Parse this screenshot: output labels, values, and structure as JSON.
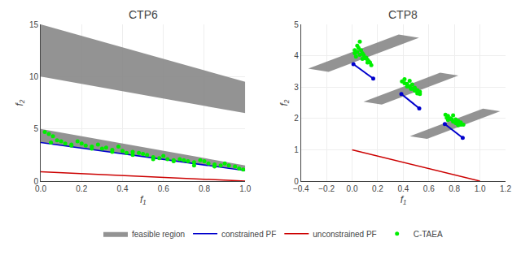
{
  "chart_data": [
    {
      "type": "scatter",
      "title": "CTP6",
      "xlabel": "f₁",
      "ylabel": "f₂",
      "xlim": [
        0,
        1
      ],
      "ylim": [
        0,
        15
      ],
      "xticks": [
        {
          "value": 0,
          "label": "0.0"
        },
        0.2,
        0.4,
        0.6,
        0.8,
        {
          "value": 1.0,
          "label": "1.0"
        }
      ],
      "yticks": [
        0,
        5,
        10,
        15
      ],
      "grid": true,
      "series": [
        {
          "name": "feasible region",
          "type": "area",
          "color": "#808080",
          "polygons": [
            {
              "x": [
                0,
                1,
                1,
                0
              ],
              "y": [
                3.7,
                1.0,
                1.5,
                5.0
              ]
            },
            {
              "x": [
                0,
                1,
                1,
                0
              ],
              "y": [
                10.0,
                6.5,
                9.5,
                15.0
              ]
            }
          ]
        },
        {
          "name": "constrained PF",
          "type": "line",
          "color": "#0000cc",
          "x": [
            0.0,
            1.0
          ],
          "values": [
            3.7,
            1.0
          ]
        },
        {
          "name": "unconstrained PF",
          "type": "line",
          "color": "#cc0000",
          "x": [
            0.0,
            1.0
          ],
          "values": [
            0.9,
            0.0
          ]
        },
        {
          "name": "C-TAEA",
          "type": "scatter",
          "color": "#00ee00",
          "marker": "dot",
          "x": [
            0.02,
            0.04,
            0.06,
            0.08,
            0.1,
            0.12,
            0.05,
            0.15,
            0.18,
            0.2,
            0.22,
            0.25,
            0.28,
            0.3,
            0.32,
            0.35,
            0.38,
            0.4,
            0.42,
            0.45,
            0.48,
            0.5,
            0.52,
            0.55,
            0.58,
            0.6,
            0.62,
            0.65,
            0.68,
            0.7,
            0.72,
            0.75,
            0.78,
            0.8,
            0.82,
            0.85,
            0.88,
            0.9,
            0.92,
            0.95,
            0.97,
            0.99,
            0.15,
            0.35,
            0.55,
            0.75,
            0.25,
            0.45,
            0.65,
            0.85
          ],
          "values": [
            4.7,
            4.5,
            4.3,
            3.9,
            3.8,
            3.6,
            3.7,
            3.5,
            3.8,
            3.6,
            3.4,
            3.3,
            3.5,
            3.1,
            3.2,
            3.0,
            3.3,
            2.9,
            2.7,
            2.8,
            2.7,
            2.6,
            2.5,
            2.3,
            2.2,
            2.4,
            2.1,
            2.0,
            2.1,
            2.0,
            1.9,
            1.8,
            2.0,
            1.9,
            1.7,
            1.6,
            1.5,
            1.7,
            1.5,
            1.4,
            1.2,
            1.1,
            3.4,
            2.8,
            2.1,
            1.5,
            3.1,
            2.5,
            1.9,
            1.4
          ]
        }
      ]
    },
    {
      "type": "scatter",
      "title": "CTP8",
      "xlabel": "f₁",
      "ylabel": "f₂",
      "xlim": [
        -0.4,
        1.2
      ],
      "ylim": [
        0,
        5
      ],
      "xticks": [
        {
          "value": -0.4,
          "label": "−0.4"
        },
        {
          "value": -0.2,
          "label": "−0.2"
        },
        {
          "value": 0,
          "label": "0.0"
        },
        0.2,
        0.4,
        0.6,
        0.8,
        {
          "value": 1.0,
          "label": "1.0"
        },
        1.2
      ],
      "yticks": [
        0,
        1,
        2,
        3,
        4,
        5
      ],
      "grid": true,
      "series": [
        {
          "name": "feasible region",
          "type": "area",
          "color": "#808080",
          "polygons": [
            {
              "x": [
                -0.3436890768,
                -0.1843416688,
                0.5236890768,
                0.3643416688
              ],
              "y": [
                3.5866048392,
                3.4831234226,
                4.5733951608,
                4.6768765774
              ]
            },
            {
              "x": [
                0.0891615324,
                0.231735529,
                0.8308384676,
                0.688264471
              ],
              "y": [
                2.5350255057,
                2.4424368697,
                3.3649744943,
                3.4575631303
              ]
            },
            {
              "x": [
                0.4519708612,
                0.586158152,
                1.1580291388,
                1.023841848
              ],
              "y": [
                1.4332690747,
                1.3461268291,
                2.2267309253,
                2.3138731709
              ]
            }
          ]
        },
        {
          "name": "constrained PF",
          "type": "line",
          "color": "#0000cc",
          "marker": "dot",
          "x": [
            0.01,
            0.165,
            null,
            0.385,
            0.525,
            null,
            0.725,
            0.865
          ],
          "values": [
            3.73,
            3.27,
            null,
            2.78,
            2.32,
            null,
            1.82,
            1.38
          ]
        },
        {
          "name": "unconstrained PF",
          "type": "line",
          "color": "#cc0000",
          "x": [
            0.0,
            1.0
          ],
          "values": [
            1.0,
            0.0
          ]
        },
        {
          "name": "C-TAEA",
          "type": "scatter",
          "color": "#00ee00",
          "marker": "dot",
          "x": [
            0.02,
            0.04,
            0.06,
            0.08,
            0.1,
            0.12,
            0.03,
            0.07,
            0.09,
            0.11,
            0.05,
            0.13,
            0.14,
            0.15,
            0.02,
            0.06,
            0.08,
            0.12,
            0.04,
            0.39,
            0.41,
            0.43,
            0.45,
            0.47,
            0.49,
            0.51,
            0.53,
            0.41,
            0.45,
            0.47,
            0.51,
            0.43,
            0.49,
            0.53,
            0.46,
            0.73,
            0.75,
            0.77,
            0.79,
            0.81,
            0.83,
            0.85,
            0.87,
            0.75,
            0.79,
            0.81,
            0.83,
            0.77,
            0.81,
            0.85,
            0.74,
            0.78,
            0.82
          ],
          "values": [
            4.18,
            4.32,
            4.45,
            4.08,
            3.92,
            3.87,
            3.97,
            4.18,
            4.02,
            3.94,
            4.25,
            3.82,
            3.78,
            3.7,
            4.08,
            4.03,
            3.9,
            3.78,
            4.12,
            3.18,
            3.25,
            3.1,
            3.2,
            3.08,
            2.98,
            2.9,
            2.85,
            3.12,
            3.02,
            2.95,
            2.8,
            3.02,
            2.88,
            2.78,
            2.95,
            2.12,
            2.08,
            2.0,
            2.1,
            1.97,
            1.92,
            1.87,
            1.8,
            1.95,
            1.9,
            1.85,
            1.78,
            1.98,
            1.9,
            1.8,
            2.02,
            1.97,
            1.84
          ]
        }
      ]
    }
  ]
}
